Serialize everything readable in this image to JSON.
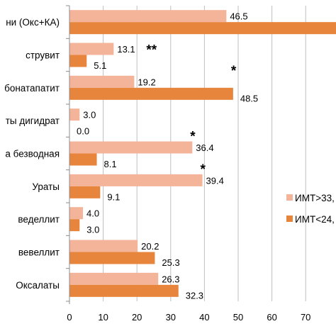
{
  "chart_data": {
    "type": "bar",
    "orientation": "horizontal",
    "categories": [
      "ни (Окс+КА)",
      "струвит",
      "бонатапатит",
      "ты дигидрат",
      "а безводная",
      "Ураты",
      "веделлит",
      "вевеллит",
      "Оксалаты"
    ],
    "series": [
      {
        "name": "ИМТ>33,",
        "color": "#f4b49a",
        "values": [
          46.5,
          13.1,
          19.2,
          3.0,
          36.4,
          39.4,
          4.0,
          20.2,
          26.3
        ],
        "labels": [
          "46.5",
          "13.1",
          "19.2",
          "3.0",
          "36.4",
          "39.4",
          "4.0",
          "20.2",
          "26.3"
        ]
      },
      {
        "name": "ИМТ<24,",
        "color": "#e8853d",
        "values": [
          81,
          5.1,
          48.5,
          0.0,
          8.1,
          9.1,
          3.0,
          25.3,
          32.3
        ],
        "labels": [
          "",
          "5.1",
          "48.5",
          "0.0",
          "8.1",
          "9.1",
          "3.0",
          "25.3",
          "32.3"
        ]
      }
    ],
    "annotations": [
      {
        "category_index": 1,
        "text": "**"
      },
      {
        "category_index": 2,
        "text": "*"
      },
      {
        "category_index": 4,
        "text": "*"
      },
      {
        "category_index": 5,
        "text": "*"
      }
    ],
    "xlim": [
      0,
      80
    ],
    "xticks": [
      "0",
      "10",
      "20",
      "30",
      "40",
      "50",
      "60",
      "70",
      "8"
    ],
    "grid": true,
    "legend": "right"
  }
}
